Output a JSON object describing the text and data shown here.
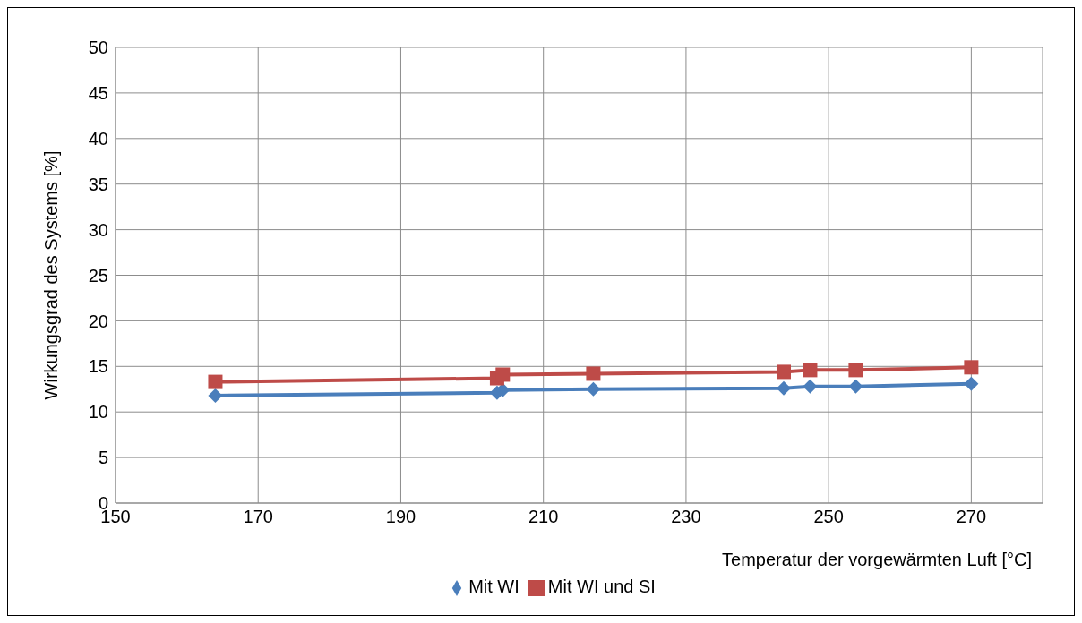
{
  "chart_data": {
    "type": "line",
    "xlabel": "Temperatur der vorgewärmten Luft [°C]",
    "ylabel": "Wirkungsgrad des Systems [%]",
    "xlim": [
      150,
      280
    ],
    "xticks": [
      150,
      170,
      190,
      210,
      230,
      250,
      270
    ],
    "ylim": [
      0,
      50
    ],
    "yticks": [
      0,
      5,
      10,
      15,
      20,
      25,
      30,
      35,
      40,
      45,
      50
    ],
    "grid": true,
    "legend": "bottom",
    "line_style": "solid",
    "series": [
      {
        "name": "Mit WI",
        "color": "#4a7ebb",
        "marker": "diamond",
        "x": [
          164,
          203.5,
          204.3,
          217,
          243.7,
          247.4,
          253.8,
          270
        ],
        "values": [
          11.8,
          12.1,
          12.4,
          12.5,
          12.6,
          12.8,
          12.8,
          13.1
        ]
      },
      {
        "name": "Mit WI und SI",
        "color": "#be4b48",
        "marker": "square",
        "x": [
          164,
          203.5,
          204.3,
          217,
          243.7,
          247.4,
          253.8,
          270
        ],
        "values": [
          13.3,
          13.7,
          14.1,
          14.2,
          14.4,
          14.6,
          14.6,
          14.9
        ]
      }
    ]
  }
}
